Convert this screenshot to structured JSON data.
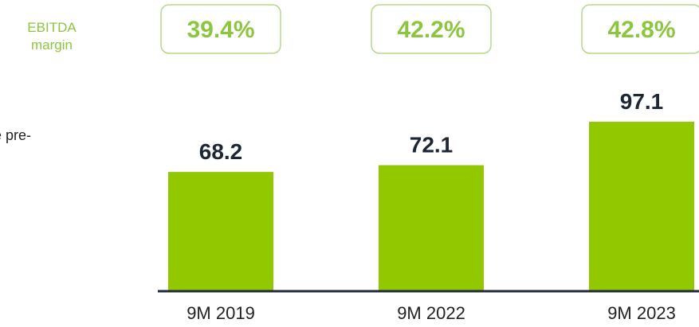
{
  "chart_data": {
    "type": "bar",
    "annotation": "e pre-",
    "categories": [
      "9M 2019",
      "9M 2022",
      "9M 2023"
    ],
    "series": [
      {
        "name": "EBITDA",
        "color": "#92c800",
        "values": [
          68.2,
          72.1,
          97.1
        ]
      }
    ],
    "margin": {
      "name": "EBITDA margin",
      "color": "#8cc63f",
      "values": [
        39.4,
        42.2,
        42.8
      ],
      "value_labels": [
        "39.4%",
        "42.2%",
        "42.8%"
      ]
    }
  }
}
